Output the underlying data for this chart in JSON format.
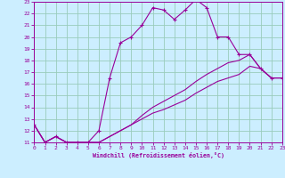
{
  "xlabel": "Windchill (Refroidissement éolien,°C)",
  "bg_color": "#cceeff",
  "line_color": "#990099",
  "grid_color": "#99ccbb",
  "xlim": [
    0,
    23
  ],
  "ylim": [
    11,
    23
  ],
  "xticks": [
    0,
    1,
    2,
    3,
    4,
    5,
    6,
    7,
    8,
    9,
    10,
    11,
    12,
    13,
    14,
    15,
    16,
    17,
    18,
    19,
    20,
    21,
    22,
    23
  ],
  "yticks": [
    11,
    12,
    13,
    14,
    15,
    16,
    17,
    18,
    19,
    20,
    21,
    22,
    23
  ],
  "series1_x": [
    0,
    1,
    2,
    3,
    4,
    5,
    6,
    7,
    8,
    9,
    10,
    11,
    12,
    13,
    14,
    15,
    16,
    17,
    18,
    19,
    20,
    21,
    22,
    23
  ],
  "series1_y": [
    12.5,
    11.0,
    11.5,
    11.0,
    11.0,
    11.0,
    12.0,
    16.5,
    19.5,
    20.0,
    21.0,
    22.5,
    22.3,
    21.5,
    22.3,
    23.2,
    22.5,
    20.0,
    20.0,
    18.5,
    18.5,
    17.3,
    16.5,
    16.5
  ],
  "series2_x": [
    0,
    1,
    2,
    3,
    4,
    5,
    6,
    7,
    8,
    9,
    10,
    11,
    12,
    13,
    14,
    15,
    16,
    17,
    18,
    19,
    20,
    21,
    22,
    23
  ],
  "series2_y": [
    12.5,
    11.0,
    11.5,
    11.0,
    11.0,
    11.0,
    11.0,
    11.5,
    12.0,
    12.5,
    13.0,
    13.5,
    13.8,
    14.2,
    14.6,
    15.2,
    15.7,
    16.2,
    16.5,
    16.8,
    17.5,
    17.3,
    16.5,
    16.5
  ],
  "series3_x": [
    0,
    1,
    2,
    3,
    4,
    5,
    6,
    7,
    8,
    9,
    10,
    11,
    12,
    13,
    14,
    15,
    16,
    17,
    18,
    19,
    20,
    21,
    22,
    23
  ],
  "series3_y": [
    12.5,
    11.0,
    11.5,
    11.0,
    11.0,
    11.0,
    11.0,
    11.5,
    12.0,
    12.5,
    13.3,
    14.0,
    14.5,
    15.0,
    15.5,
    16.2,
    16.8,
    17.3,
    17.8,
    18.0,
    18.5,
    17.3,
    16.5,
    16.5
  ]
}
